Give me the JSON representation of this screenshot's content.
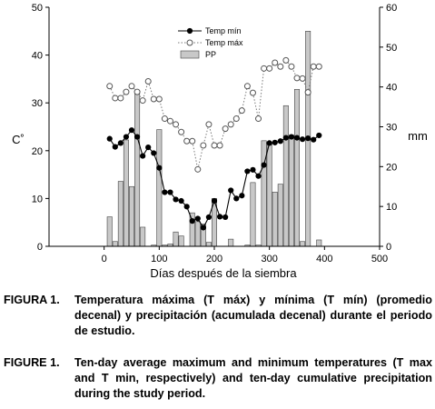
{
  "chart_data": {
    "type": "line+bar",
    "title": "",
    "xlabel": "Días después de la siembra",
    "ylabel_left": "C˚",
    "ylabel_right": "mm",
    "xlim": [
      -100,
      500
    ],
    "ylim_left": [
      0,
      50
    ],
    "ylim_right": [
      0,
      60
    ],
    "xticks": [
      0,
      100,
      200,
      300,
      400,
      500
    ],
    "yticks_left": [
      0,
      10,
      20,
      30,
      40,
      50
    ],
    "yticks_right": [
      0,
      10,
      20,
      30,
      40,
      50,
      60
    ],
    "grid": false,
    "legend_position": "top-right",
    "series": [
      {
        "name": "Temp mín",
        "type": "line",
        "axis": "left",
        "x": [
          10,
          20,
          30,
          40,
          50,
          60,
          70,
          80,
          90,
          100,
          110,
          120,
          130,
          140,
          150,
          160,
          170,
          180,
          190,
          200,
          210,
          220,
          230,
          240,
          250,
          260,
          270,
          280,
          290,
          300,
          310,
          320,
          330,
          340,
          350,
          360,
          370,
          380,
          390
        ],
        "values": [
          22.5,
          20.8,
          21.6,
          22.9,
          24.3,
          22.9,
          18.9,
          20.7,
          19.5,
          16.4,
          11.3,
          11.3,
          9.8,
          9.5,
          8.3,
          5.3,
          5.8,
          3.9,
          6.1,
          9.5,
          6.2,
          6.1,
          11.7,
          10.0,
          10.6,
          15.7,
          16.0,
          14.7,
          17.0,
          21.6,
          21.7,
          22.0,
          22.7,
          22.9,
          22.7,
          22.4,
          22.6,
          22.3,
          23.2
        ],
        "color": "#000000"
      },
      {
        "name": "Temp máx",
        "type": "line",
        "axis": "left",
        "x": [
          10,
          20,
          30,
          40,
          50,
          60,
          70,
          80,
          90,
          100,
          110,
          120,
          130,
          140,
          150,
          160,
          170,
          180,
          190,
          200,
          210,
          220,
          230,
          240,
          250,
          260,
          270,
          280,
          290,
          300,
          310,
          320,
          330,
          340,
          350,
          360,
          370,
          380,
          390
        ],
        "values": [
          33.5,
          31.0,
          31.0,
          32.3,
          33.5,
          32.3,
          30.5,
          34.5,
          30.8,
          30.8,
          26.7,
          26.2,
          25.5,
          23.9,
          22.0,
          22.0,
          16.1,
          21.1,
          25.5,
          21.1,
          21.1,
          24.6,
          25.5,
          26.7,
          28.4,
          33.5,
          32.1,
          26.7,
          37.2,
          37.2,
          38.4,
          37.6,
          38.9,
          37.6,
          35.2,
          35.1,
          32.2,
          37.6,
          37.6
        ],
        "color": "#7a7a7a"
      },
      {
        "name": "PP",
        "type": "bar",
        "axis": "right",
        "bars": [
          {
            "x": 10,
            "value": 7.4
          },
          {
            "x": 20,
            "value": 1.2
          },
          {
            "x": 30,
            "value": 16.3
          },
          {
            "x": 40,
            "value": 26.7
          },
          {
            "x": 50,
            "value": 15.0
          },
          {
            "x": 60,
            "value": 38.9
          },
          {
            "x": 70,
            "value": 4.8
          },
          {
            "x": 90,
            "value": 0.3
          },
          {
            "x": 100,
            "value": 29.3
          },
          {
            "x": 110,
            "value": 0.3
          },
          {
            "x": 120,
            "value": 0.6
          },
          {
            "x": 130,
            "value": 3.6
          },
          {
            "x": 140,
            "value": 2.6
          },
          {
            "x": 160,
            "value": 8.4
          },
          {
            "x": 170,
            "value": 6.2
          },
          {
            "x": 180,
            "value": 5.6
          },
          {
            "x": 190,
            "value": 1.0
          },
          {
            "x": 200,
            "value": 12.0
          },
          {
            "x": 230,
            "value": 1.8
          },
          {
            "x": 260,
            "value": 0.3
          },
          {
            "x": 270,
            "value": 16.0
          },
          {
            "x": 280,
            "value": 0.3
          },
          {
            "x": 290,
            "value": 26.5
          },
          {
            "x": 300,
            "value": 26.0
          },
          {
            "x": 310,
            "value": 13.6
          },
          {
            "x": 320,
            "value": 15.6
          },
          {
            "x": 330,
            "value": 35.3
          },
          {
            "x": 340,
            "value": 27.9
          },
          {
            "x": 350,
            "value": 39.4
          },
          {
            "x": 360,
            "value": 1.2
          },
          {
            "x": 370,
            "value": 54.0
          },
          {
            "x": 390,
            "value": 1.6
          }
        ],
        "color": "#c8c8c8"
      }
    ]
  },
  "caption": {
    "es_lead": "FIGURA 1.",
    "es_text": "Temperatura máxima (T máx) y mínima (T mín) (promedio decenal) y precipitación (acumulada decenal) durante el periodo de estudio.",
    "en_lead": "FIGURE 1.",
    "en_text": "Ten-day average maximum and minimum temperatures (T max and T min, respectively) and ten-day cumulative precipitation during the study period."
  }
}
